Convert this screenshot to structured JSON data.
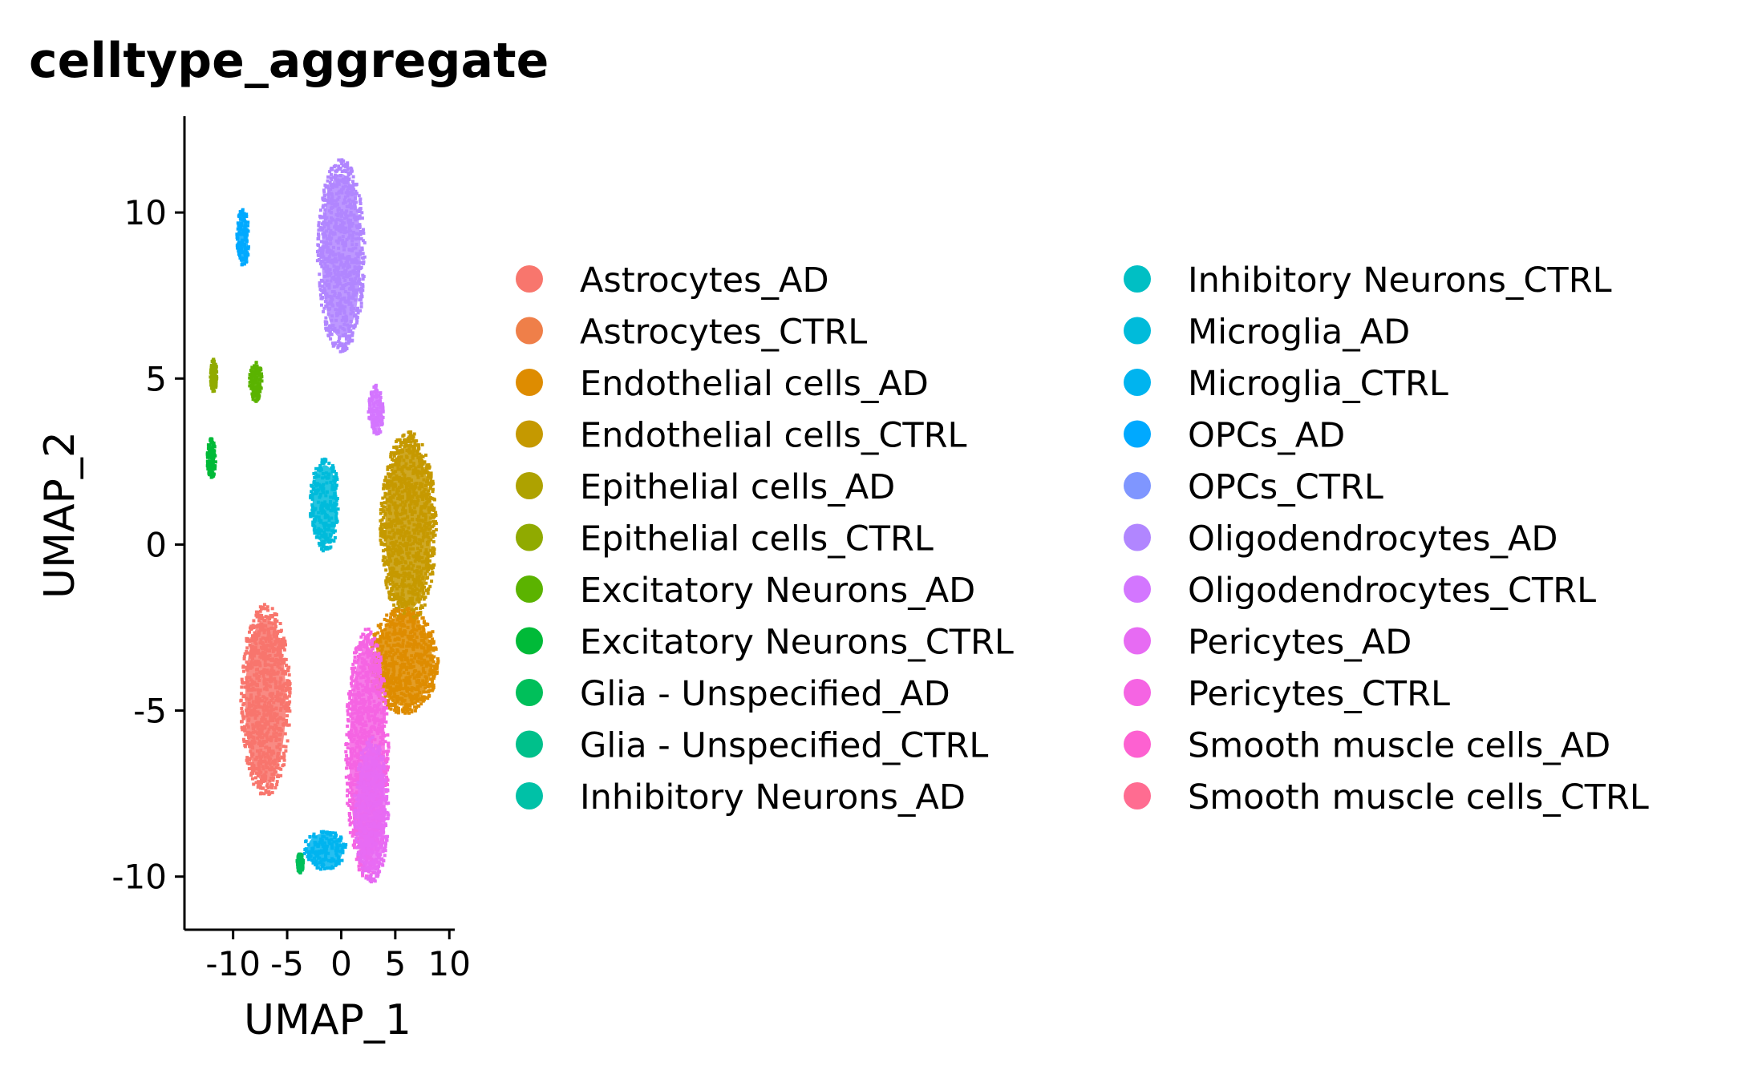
{
  "chart_data": {
    "type": "scatter",
    "title": "celltype_aggregate",
    "xlabel": "UMAP_1",
    "ylabel": "UMAP_2",
    "xlim": [
      -14.5,
      10.5
    ],
    "ylim": [
      -11.6,
      12.9
    ],
    "x_ticks": [
      -10,
      -5,
      0,
      5,
      10
    ],
    "x_tick_labels": [
      "-10",
      "-5",
      "0",
      "5",
      "10"
    ],
    "y_ticks": [
      -10,
      -5,
      0,
      5,
      10
    ],
    "y_tick_labels": [
      "-10",
      "-5",
      "0",
      "5",
      "10"
    ],
    "grid": false,
    "legend_position": "right",
    "legend_columns": 2,
    "series": [
      {
        "name": "Astrocytes_AD",
        "color": "#F8766D"
      },
      {
        "name": "Astrocytes_CTRL",
        "color": "#EF7F49"
      },
      {
        "name": "Endothelial cells_AD",
        "color": "#DE8C00"
      },
      {
        "name": "Endothelial cells_CTRL",
        "color": "#C59900"
      },
      {
        "name": "Epithelial cells_AD",
        "color": "#AEA200"
      },
      {
        "name": "Epithelial cells_CTRL",
        "color": "#90AA00"
      },
      {
        "name": "Excitatory Neurons_AD",
        "color": "#5BB300"
      },
      {
        "name": "Excitatory Neurons_CTRL",
        "color": "#00BA38"
      },
      {
        "name": "Glia - Unspecified_AD",
        "color": "#00BF5A"
      },
      {
        "name": "Glia - Unspecified_CTRL",
        "color": "#00C08B"
      },
      {
        "name": "Inhibitory Neurons_AD",
        "color": "#00C1A7"
      },
      {
        "name": "Inhibitory Neurons_CTRL",
        "color": "#00BFC4"
      },
      {
        "name": "Microglia_AD",
        "color": "#00BBDA"
      },
      {
        "name": "Microglia_CTRL",
        "color": "#00B4EF"
      },
      {
        "name": "OPCs_AD",
        "color": "#00A9FF"
      },
      {
        "name": "OPCs_CTRL",
        "color": "#7F96FF"
      },
      {
        "name": "Oligodendrocytes_AD",
        "color": "#B186FF"
      },
      {
        "name": "Oligodendrocytes_CTRL",
        "color": "#D376FF"
      },
      {
        "name": "Pericytes_AD",
        "color": "#E76BF3"
      },
      {
        "name": "Pericytes_CTRL",
        "color": "#F564E3"
      },
      {
        "name": "Smooth muscle cells_AD",
        "color": "#FD61D1"
      },
      {
        "name": "Smooth muscle cells_CTRL",
        "color": "#FF6C91"
      }
    ],
    "clusters": [
      {
        "series": 16,
        "x": 0,
        "y": 8.7,
        "rx": 2.2,
        "ry": 2.9
      },
      {
        "series": 17,
        "x": 3.2,
        "y": 4.0,
        "rx": 0.7,
        "ry": 0.8
      },
      {
        "series": 3,
        "x": 6.2,
        "y": 0.5,
        "rx": 2.6,
        "ry": 2.9
      },
      {
        "series": 2,
        "x": 5.8,
        "y": -3.5,
        "rx": 3.2,
        "ry": 1.6
      },
      {
        "series": 0,
        "x": -7.0,
        "y": -4.7,
        "rx": 2.3,
        "ry": 2.9
      },
      {
        "series": 19,
        "x": 2.4,
        "y": -6.3,
        "rx": 2.0,
        "ry": 3.8
      },
      {
        "series": 18,
        "x": 2.8,
        "y": -8.0,
        "rx": 1.6,
        "ry": 2.2
      },
      {
        "series": 12,
        "x": -1.5,
        "y": 1.2,
        "rx": 1.4,
        "ry": 1.4
      },
      {
        "series": 13,
        "x": -1.5,
        "y": -9.2,
        "rx": 2.0,
        "ry": 0.6
      },
      {
        "series": 14,
        "x": -9.1,
        "y": 9.2,
        "rx": 0.6,
        "ry": 0.9
      },
      {
        "series": 6,
        "x": -7.9,
        "y": 4.9,
        "rx": 0.6,
        "ry": 0.6
      },
      {
        "series": 5,
        "x": -11.8,
        "y": 5.1,
        "rx": 0.3,
        "ry": 0.5
      },
      {
        "series": 7,
        "x": -12.0,
        "y": 2.6,
        "rx": 0.4,
        "ry": 0.6
      },
      {
        "series": 8,
        "x": -3.8,
        "y": -9.6,
        "rx": 0.3,
        "ry": 0.3
      }
    ]
  }
}
